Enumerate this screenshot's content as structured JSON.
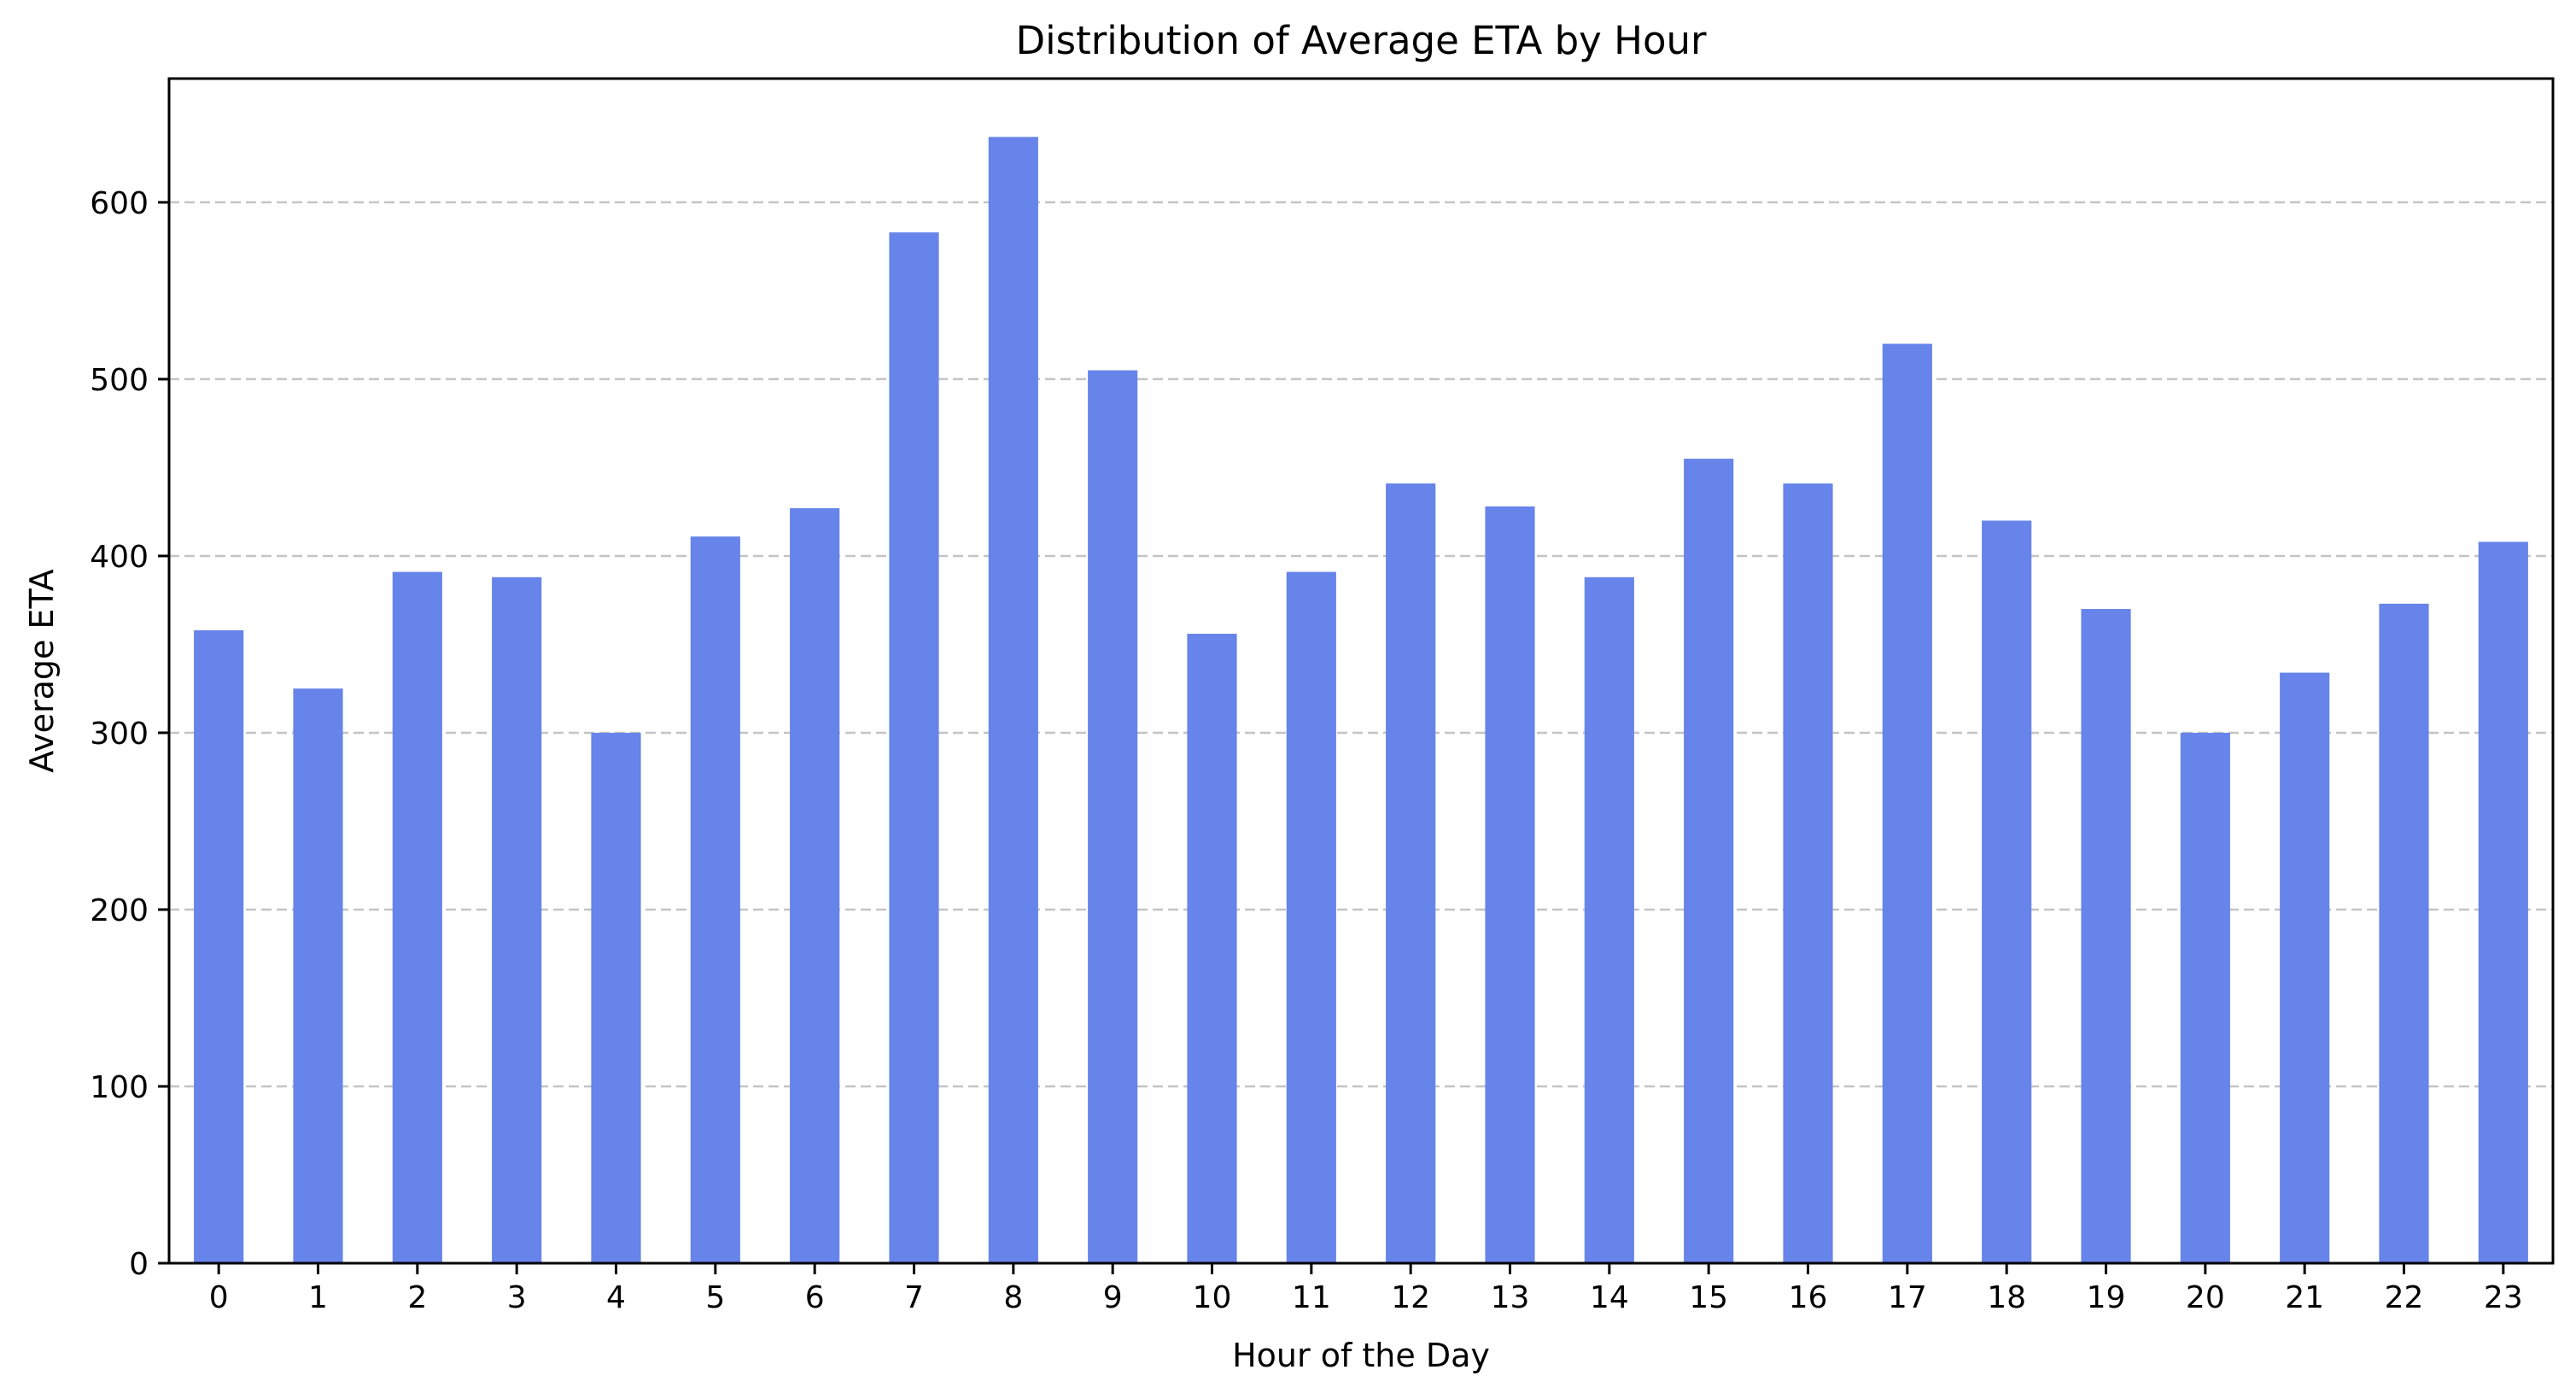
{
  "chart_data": {
    "type": "bar",
    "title": "Distribution of Average ETA by Hour",
    "xlabel": "Hour of the Day",
    "ylabel": "Average ETA",
    "categories": [
      "0",
      "1",
      "2",
      "3",
      "4",
      "5",
      "6",
      "7",
      "8",
      "9",
      "10",
      "11",
      "12",
      "13",
      "14",
      "15",
      "16",
      "17",
      "18",
      "19",
      "20",
      "21",
      "22",
      "23"
    ],
    "values": [
      358,
      325,
      391,
      388,
      300,
      411,
      427,
      583,
      637,
      505,
      356,
      391,
      441,
      428,
      388,
      455,
      441,
      520,
      420,
      370,
      300,
      334,
      373,
      408
    ],
    "ylim": [
      0,
      670
    ],
    "yticks": [
      0,
      100,
      200,
      300,
      400,
      500,
      600
    ],
    "grid": "y-dashed",
    "bar_color": "#6784ea"
  }
}
